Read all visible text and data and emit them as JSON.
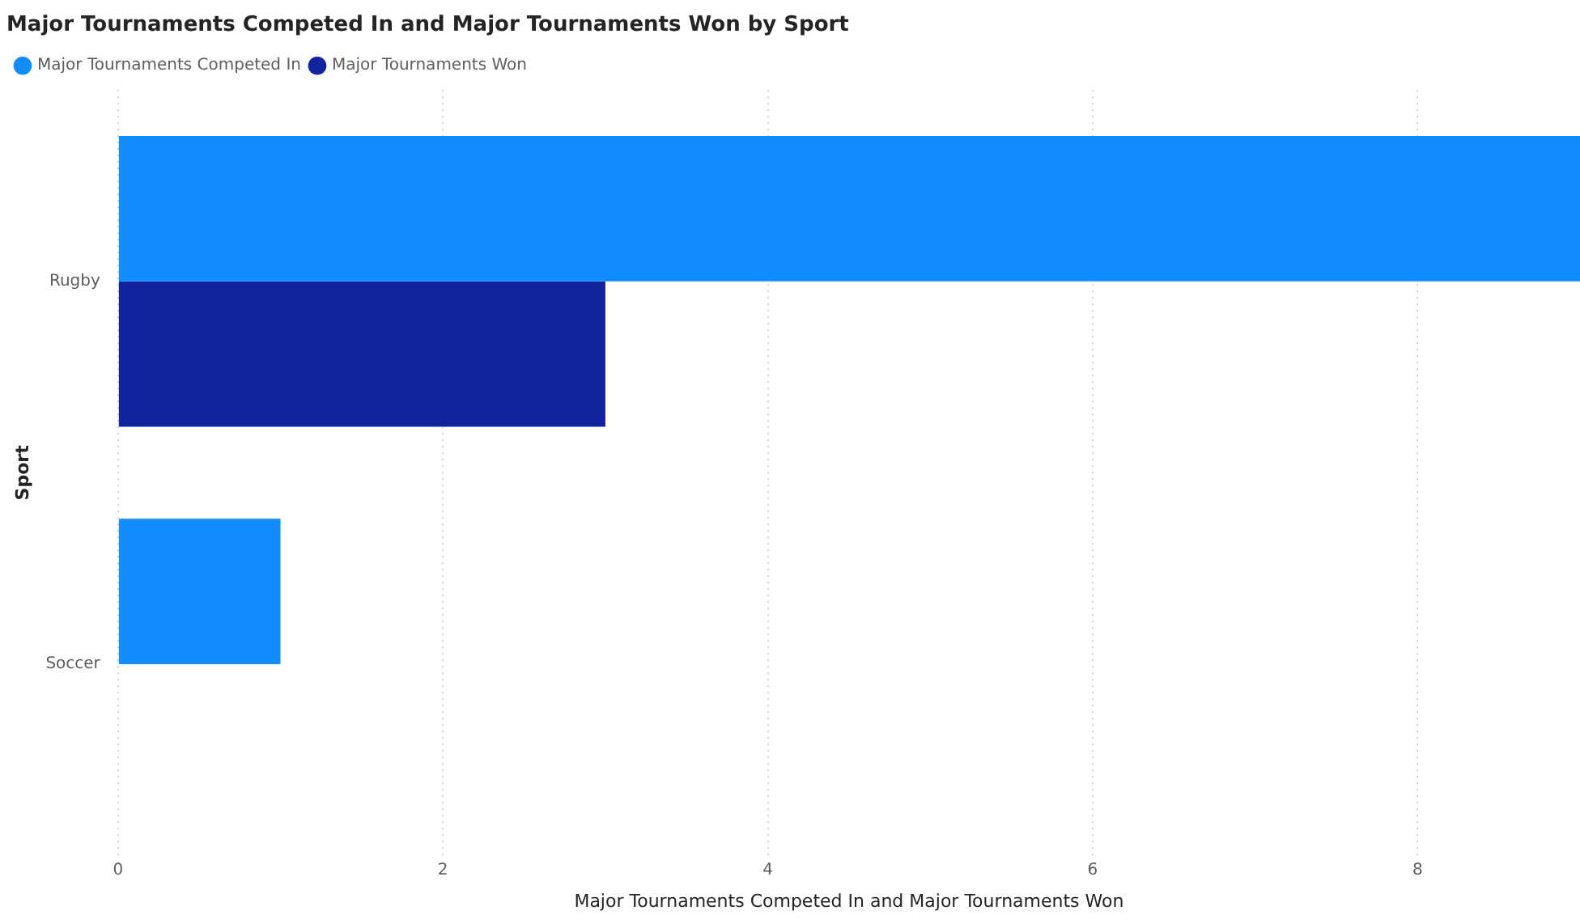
{
  "chart_data": {
    "type": "bar",
    "orientation": "horizontal",
    "title": "Major Tournaments Competed In and Major Tournaments Won by Sport",
    "xlabel": "Major Tournaments Competed In and Major Tournaments Won",
    "ylabel": "Sport",
    "categories": [
      "Rugby",
      "Soccer"
    ],
    "series": [
      {
        "name": "Major Tournaments Competed In",
        "color": "#118dff",
        "values": [
          9,
          1
        ]
      },
      {
        "name": "Major Tournaments Won",
        "color": "#12239e",
        "values": [
          3,
          null
        ]
      }
    ],
    "xlim": [
      0,
      9
    ],
    "xticks": [
      0,
      2,
      4,
      6,
      8
    ],
    "grid": "x",
    "legend": "top left"
  }
}
